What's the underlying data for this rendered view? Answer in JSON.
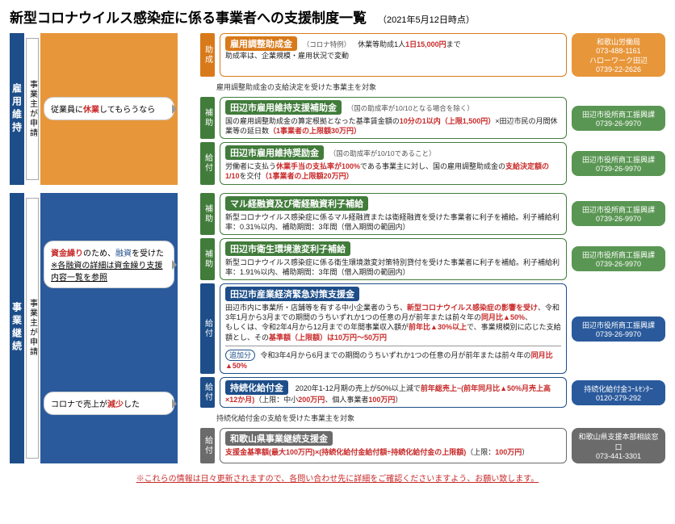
{
  "header": {
    "title": "新型コロナウイルス感染症に係る事業者への支援制度一覧",
    "date": "（2021年5月12日時点）"
  },
  "sec1": {
    "vbar": "雇用維持",
    "applicant": "事業主が申請",
    "cond": "従業員に<span class='red'>休業</span>してもらうなら",
    "r1": {
      "tag": "助成",
      "title": "雇用調整助成金",
      "sub": "（コロナ特例）",
      "body": "休業等助成1人<span class='red'>1日15,000円</span>まで<br>助成率は、企業規模・雇用状況で変動",
      "contact": "和歌山労働局<br>073-488-1161<br>ハローワーク田辺<br>0739-22-2626"
    },
    "subhead": "雇用調整助成金の支給決定を受けた事業主を対象",
    "r2": {
      "tag": "補助",
      "title": "田辺市雇用維持支援補助金",
      "sub": "（国の助成率が10/10となる場合を除く）",
      "body": "国の雇用調整助成金の算定根拠となった基準賃金額の<span class='red'>10分の1以内（上限1,500円）</span>×田辺市民の月間休業等の延日数<span class='red'>（1事業者の上限額30万円）</span>",
      "contact": "田辺市役所商工振興課<br>0739-26-9970"
    },
    "r3": {
      "tag": "給付",
      "title": "田辺市雇用維持奨励金",
      "sub": "（国の助成率が10/10であること）",
      "body": "労働者に支払う<span class='red'>休業手当の支払率が100%</span>である事業主に対し、国の雇用調整助成金の<span class='red'>支給決定額の1/10</span>を交付<span class='red'>（1事業者の上限額20万円）</span>",
      "contact": "田辺市役所商工振興課<br>0739-26-9970"
    }
  },
  "sec2": {
    "vbar": "事業継続",
    "applicant": "事業主が申請",
    "condA": "<span class='red'>資金繰り</span>のため、<span class='bl'>融資</span>を受けた<br><span class='u'>※各融資の詳細は資金繰り支援内容一覧を参照</span>",
    "condB": "コロナで売上が<span class='red'>減少</span>した",
    "g1": {
      "tag": "補助",
      "title": "マル経融資及び衛経融資利子補給",
      "body": "新型コロナウイルス感染症に係るマル経融資または衛経融資を受けた事業者に利子を補給。利子補給利率：0.31%以内、補助期間：3年間（借入期間の範囲内）",
      "contact": "田辺市役所商工振興課<br>0739-26-9970"
    },
    "g2": {
      "tag": "補助",
      "title": "田辺市衛生環境激変利子補給",
      "body": "新型コロナウイルス感染症に係る衛生環境激変対策特別貸付を受けた事業者に利子を補給。利子補給利率：1.91%以内、補助期間：3年間（借入期間の範囲内）",
      "contact": "田辺市役所商工振興課<br>0739-26-9970"
    },
    "b1": {
      "tag": "給付",
      "title": "田辺市産業経済緊急対策支援金",
      "body": "田辺市内に事業所・店舗等を有する中小企業者のうち、<span class='red'>新型コロナウイルス感染症の影響を受け</span>、令和3年1月から3月までの期間のうちいずれか1つの任意の月が前年または前々年の<span class='red'>同月比▲50%</span>、<br>もしくは、令和2年4月から12月までの年間事業収入額が<span class='red'>前年比▲30%以上</span>で、事業規模別に応じた支給額とし、その<span class='red'>基準額（上限額）は10万円〜50万円</span>",
      "addon": "追加分",
      "body2": "令和3年4月から6月までの期間のうちいずれか1つの任意の月が前年または前々年の<span class='red'>同月比▲50%</span>",
      "contact": "田辺市役所商工振興課<br>0739-26-9970"
    },
    "b2": {
      "tag": "給付",
      "title": "持続化給付金",
      "body": "2020年1-12月期の売上が50%以上減で<span class='red'>前年総売上−(前年同月比▲50%月売上高×12か月)</span>（上限：中小<span class='red'>200万円</span>、個人事業者<span class='red'>100万円</span>）",
      "contact": "持続化給付金ｺｰﾙｾﾝﾀｰ<br>0120-279-292"
    },
    "subhead2": "持続化給付金の支給を受けた事業主を対象",
    "gy": {
      "tag": "給付",
      "title": "和歌山県事業継続支援金",
      "body": "<span class='red'>支援金基準額(最大100万円)×(持続化給付金給付額÷持続化給付金の上限額)</span>（上限：<span class='red'>100万円</span>）",
      "contact": "和歌山県支援本部相談窓口<br>073-441-3301"
    }
  },
  "disclaimer": "※これらの情報は日々更新されますので、各問い合わせ先に詳細をご確認くださいますよう、お願い致します。"
}
